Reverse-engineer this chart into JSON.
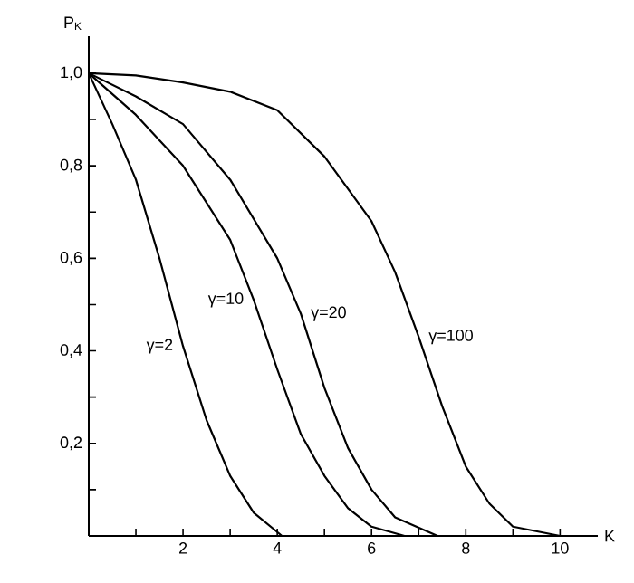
{
  "chart_data": {
    "type": "line",
    "xlabel": "K",
    "ylabel": "P$_{K}$",
    "xlim": [
      0,
      10.8
    ],
    "ylim": [
      0,
      1.08
    ],
    "xticks": [
      {
        "value": 0,
        "label": null
      },
      {
        "value": 1,
        "label": null
      },
      2,
      {
        "value": 3,
        "label": null
      },
      4,
      {
        "value": 5,
        "label": null
      },
      6,
      {
        "value": 7,
        "label": null
      },
      8,
      {
        "value": 9,
        "label": null
      },
      10
    ],
    "yticks": [
      {
        "value": 0,
        "label": null
      },
      {
        "value": 0.1,
        "label": null
      },
      {
        "value": 0.2,
        "label": "0,2"
      },
      {
        "value": 0.3,
        "label": null
      },
      {
        "value": 0.4,
        "label": "0,4"
      },
      {
        "value": 0.5,
        "label": null
      },
      {
        "value": 0.6,
        "label": "0,6"
      },
      {
        "value": 0.7,
        "label": null
      },
      {
        "value": 0.8,
        "label": "0,8"
      },
      {
        "value": 0.9,
        "label": null
      },
      {
        "value": 1.0,
        "label": "1,0"
      }
    ],
    "grid": false,
    "legend": false,
    "marker": "none",
    "line_style": "solid",
    "series": [
      {
        "name": "γ=2",
        "color": "#000000",
        "x": [
          0,
          0.5,
          1,
          1.5,
          2,
          2.5,
          3,
          3.5,
          4.1
        ],
        "values": [
          1,
          0.89,
          0.77,
          0.6,
          0.41,
          0.25,
          0.13,
          0.05,
          0
        ]
      },
      {
        "name": "γ=10",
        "color": "#000000",
        "x": [
          0,
          1,
          2,
          3,
          3.5,
          4,
          4.5,
          5,
          5.5,
          6,
          6.7
        ],
        "values": [
          1,
          0.91,
          0.8,
          0.64,
          0.51,
          0.36,
          0.22,
          0.13,
          0.06,
          0.02,
          0
        ]
      },
      {
        "name": "γ=20",
        "color": "#000000",
        "x": [
          0,
          1,
          2,
          3,
          4,
          4.5,
          5,
          5.5,
          6,
          6.5,
          7.4
        ],
        "values": [
          1,
          0.95,
          0.89,
          0.77,
          0.6,
          0.48,
          0.32,
          0.19,
          0.1,
          0.04,
          0
        ]
      },
      {
        "name": "γ=100",
        "color": "#000000",
        "x": [
          0,
          1,
          2,
          3,
          4,
          5,
          6,
          6.5,
          7,
          7.5,
          8,
          8.5,
          9,
          10
        ],
        "values": [
          1,
          0.995,
          0.98,
          0.96,
          0.92,
          0.82,
          0.68,
          0.57,
          0.43,
          0.28,
          0.15,
          0.07,
          0.02,
          0
        ]
      }
    ]
  }
}
